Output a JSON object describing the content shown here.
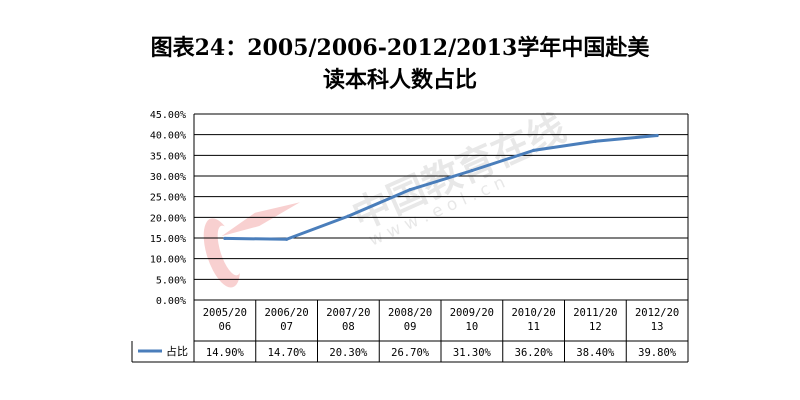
{
  "chart_data": {
    "type": "line",
    "title_line1": "图表24：2005/2006-2012/2013学年中国赴美",
    "title_line2": "读本科人数占比",
    "categories": [
      [
        "2005/20",
        "06"
      ],
      [
        "2006/20",
        "07"
      ],
      [
        "2007/20",
        "08"
      ],
      [
        "2008/20",
        "09"
      ],
      [
        "2009/20",
        "10"
      ],
      [
        "2010/20",
        "11"
      ],
      [
        "2011/20",
        "12"
      ],
      [
        "2012/20",
        "13"
      ]
    ],
    "y_ticks": [
      "0.00%",
      "5.00%",
      "10.00%",
      "15.00%",
      "20.00%",
      "25.00%",
      "30.00%",
      "35.00%",
      "40.00%",
      "45.00%"
    ],
    "ylim": [
      0,
      45
    ],
    "grid": true,
    "series": [
      {
        "name": "占比",
        "color": "#4a7ebb",
        "values": [
          14.9,
          14.7,
          20.3,
          26.7,
          31.3,
          36.2,
          38.4,
          39.8
        ],
        "labels": [
          "14.90%",
          "14.70%",
          "20.30%",
          "26.70%",
          "31.30%",
          "36.20%",
          "38.40%",
          "39.80%"
        ]
      }
    ]
  },
  "watermark": {
    "text_cn": "中国教育在线",
    "text_url": "w w w . e o l . c n"
  }
}
